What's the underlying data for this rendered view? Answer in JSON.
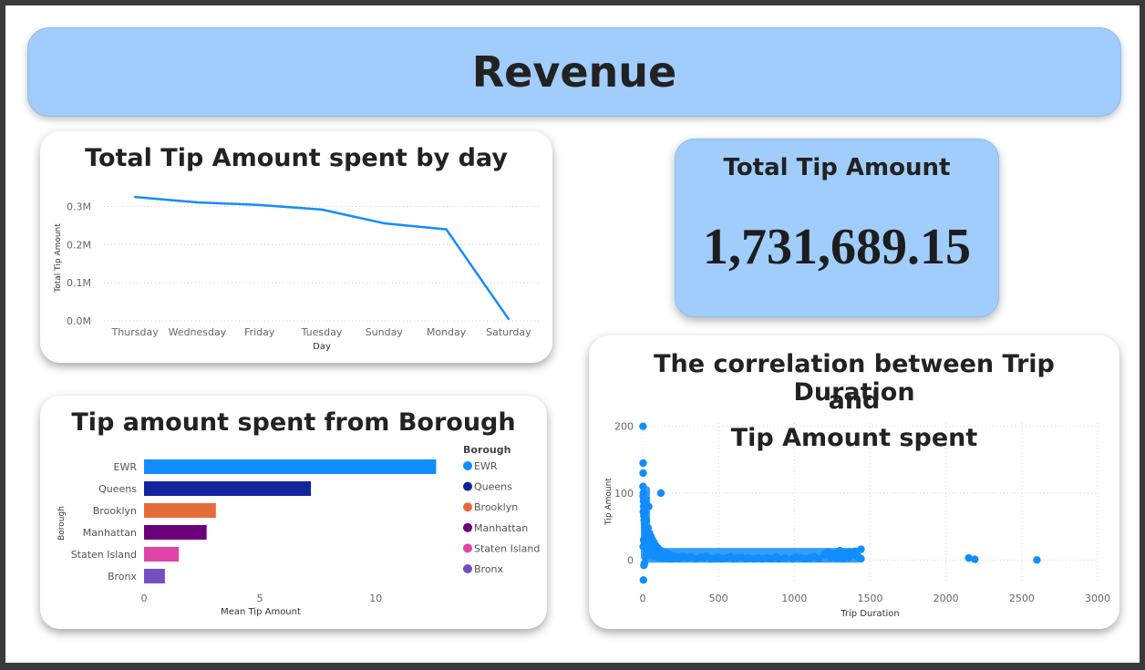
{
  "header": {
    "title": "Revenue"
  },
  "line_chart": {
    "title": "Total Tip Amount spent by day",
    "chart_data": {
      "type": "line",
      "categories": [
        "Thursday",
        "Wednesday",
        "Friday",
        "Tuesday",
        "Sunday",
        "Monday",
        "Saturday"
      ],
      "values": [
        325000,
        311000,
        304000,
        292000,
        256000,
        240000,
        5000
      ],
      "xlabel": "Day",
      "ylabel": "Total Tip Amount",
      "ylim": [
        0,
        330000
      ],
      "yticks": [
        "0.0M",
        "0.1M",
        "0.2M",
        "0.3M"
      ],
      "ytick_values": [
        0,
        100000,
        200000,
        300000
      ],
      "grid": true,
      "color": "#118dff"
    }
  },
  "kpi": {
    "label": "Total Tip Amount",
    "value": "1,731,689.15"
  },
  "bar_chart": {
    "title": "Tip amount spent from Borough",
    "chart_data": {
      "type": "bar",
      "orientation": "horizontal",
      "categories": [
        "EWR",
        "Queens",
        "Brooklyn",
        "Manhattan",
        "Staten Island",
        "Bronx"
      ],
      "values": [
        12.6,
        7.2,
        3.1,
        2.7,
        1.5,
        0.9
      ],
      "colors": [
        "#118dff",
        "#12239e",
        "#e66c37",
        "#6b007b",
        "#e044a7",
        "#744ec2"
      ],
      "xlabel": "Mean Tip Amount",
      "ylabel": "Borough",
      "xlim": [
        0,
        14
      ],
      "xticks": [
        "0",
        "5",
        "10"
      ],
      "legend_title": "Borough",
      "legend_position": "right"
    }
  },
  "scatter_chart": {
    "title_lines": [
      "The correlation between Trip Duration",
      "and",
      "Tip Amount spent"
    ],
    "chart_data": {
      "type": "scatter",
      "xlabel": "Trip Duration",
      "ylabel": "Tip Amount",
      "xlim": [
        0,
        3000
      ],
      "ylim": [
        -35,
        205
      ],
      "xticks": [
        "0",
        "500",
        "1000",
        "1500",
        "2000",
        "2500",
        "3000"
      ],
      "yticks": [
        "0",
        "100",
        "200"
      ],
      "color": "#118dff",
      "points": [
        [
          2,
          200
        ],
        [
          3,
          145
        ],
        [
          3,
          130
        ],
        [
          2,
          110
        ],
        [
          4,
          100
        ],
        [
          3,
          95
        ],
        [
          5,
          88
        ],
        [
          6,
          80
        ],
        [
          4,
          72
        ],
        [
          8,
          66
        ],
        [
          10,
          60
        ],
        [
          12,
          55
        ],
        [
          14,
          50
        ],
        [
          16,
          45
        ],
        [
          18,
          40
        ],
        [
          22,
          36
        ],
        [
          26,
          32
        ],
        [
          30,
          28
        ],
        [
          35,
          25
        ],
        [
          40,
          22
        ],
        [
          45,
          20
        ],
        [
          50,
          18
        ],
        [
          60,
          15
        ],
        [
          70,
          12
        ],
        [
          80,
          10
        ],
        [
          90,
          8
        ],
        [
          110,
          7
        ],
        [
          15,
          70
        ],
        [
          25,
          60
        ],
        [
          35,
          48
        ],
        [
          45,
          40
        ],
        [
          55,
          35
        ],
        [
          65,
          30
        ],
        [
          75,
          26
        ],
        [
          85,
          22
        ],
        [
          100,
          18
        ],
        [
          120,
          14
        ],
        [
          140,
          12
        ],
        [
          160,
          10
        ],
        [
          180,
          8
        ],
        [
          200,
          6
        ],
        [
          220,
          5
        ],
        [
          250,
          4
        ],
        [
          280,
          4
        ],
        [
          120,
          100
        ],
        [
          20,
          90
        ],
        [
          40,
          80
        ],
        [
          30,
          15
        ],
        [
          50,
          10
        ],
        [
          70,
          6
        ],
        [
          100,
          4
        ],
        [
          130,
          3
        ],
        [
          150,
          3
        ],
        [
          170,
          2
        ],
        [
          190,
          2
        ],
        [
          210,
          3
        ],
        [
          240,
          2
        ],
        [
          260,
          6
        ],
        [
          300,
          3
        ],
        [
          320,
          5
        ],
        [
          350,
          2
        ],
        [
          380,
          4
        ],
        [
          400,
          3
        ],
        [
          420,
          6
        ],
        [
          450,
          2
        ],
        [
          480,
          3
        ],
        [
          500,
          4
        ],
        [
          520,
          2
        ],
        [
          550,
          3
        ],
        [
          580,
          5
        ],
        [
          600,
          2
        ],
        [
          620,
          3
        ],
        [
          650,
          4
        ],
        [
          680,
          2
        ],
        [
          700,
          3
        ],
        [
          730,
          2
        ],
        [
          760,
          3
        ],
        [
          790,
          2
        ],
        [
          820,
          3
        ],
        [
          850,
          2
        ],
        [
          880,
          5
        ],
        [
          900,
          2
        ],
        [
          940,
          3
        ],
        [
          990,
          2
        ],
        [
          1010,
          4
        ],
        [
          1040,
          3
        ],
        [
          1070,
          2
        ],
        [
          1100,
          3
        ],
        [
          1130,
          5
        ],
        [
          1160,
          2
        ],
        [
          1200,
          8
        ],
        [
          1220,
          12
        ],
        [
          1240,
          4
        ],
        [
          1260,
          10
        ],
        [
          1280,
          3
        ],
        [
          1300,
          14
        ],
        [
          1320,
          6
        ],
        [
          1340,
          11
        ],
        [
          1360,
          4
        ],
        [
          1380,
          9
        ],
        [
          1400,
          13
        ],
        [
          1420,
          5
        ],
        [
          1440,
          16
        ],
        [
          1440,
          2
        ],
        [
          1400,
          7
        ],
        [
          1360,
          12
        ],
        [
          1320,
          2
        ],
        [
          1280,
          9
        ],
        [
          2150,
          3
        ],
        [
          2190,
          1
        ],
        [
          2600,
          0
        ],
        [
          5,
          -30
        ],
        [
          8,
          -8
        ],
        [
          12,
          -5
        ],
        [
          3,
          20
        ],
        [
          6,
          30
        ]
      ]
    }
  }
}
